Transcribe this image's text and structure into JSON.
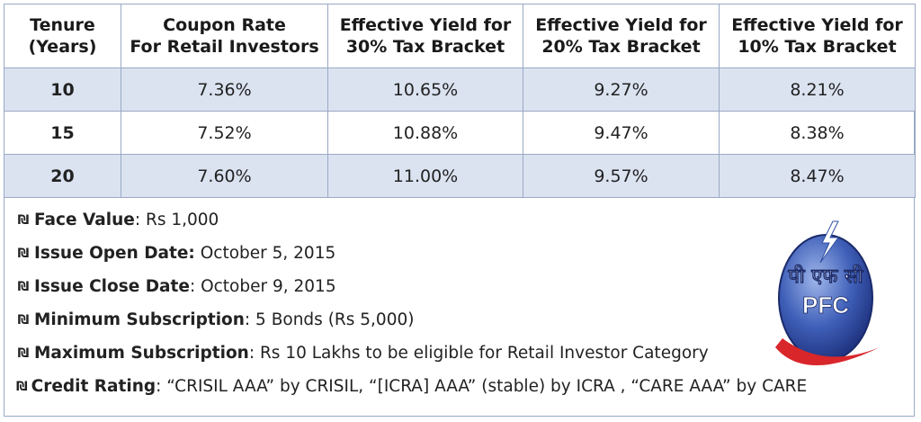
{
  "table": {
    "headers": [
      [
        "Tenure",
        "(Years)"
      ],
      [
        "Coupon Rate",
        "For Retail Investors"
      ],
      [
        "Effective Yield for",
        "30% Tax Bracket"
      ],
      [
        "Effective Yield for",
        "20% Tax Bracket"
      ],
      [
        "Effective Yield for",
        "10% Tax Bracket"
      ]
    ],
    "rows": [
      [
        "10",
        "7.36%",
        "10.65%",
        "9.27%",
        "8.21%"
      ],
      [
        "15",
        "7.52%",
        "10.88%",
        "9.47%",
        "8.38%"
      ],
      [
        "20",
        "7.60%",
        "11.00%",
        "9.57%",
        "8.47%"
      ]
    ]
  },
  "details": [
    {
      "icon": "money-bag-icon",
      "label": "Face Value",
      "sep": ": ",
      "value": "Rs 1,000"
    },
    {
      "icon": "money-bag-icon",
      "label": "Issue Open Date:",
      "sep": " ",
      "value": "October 5, 2015"
    },
    {
      "icon": "money-bag-icon",
      "label": "Issue Close Date",
      "sep": ": ",
      "value": "October 9, 2015"
    },
    {
      "icon": "money-bag-icon",
      "label": "Minimum Subscription",
      "sep": ": ",
      "value": "5 Bonds (Rs 5,000)"
    },
    {
      "icon": "money-bag-icon",
      "label": "Maximum Subscription",
      "sep": ": ",
      "value": "Rs 10 Lakhs to be eligible for Retail Investor Category"
    },
    {
      "icon": "money-bag-icon",
      "label": "Credit Rating",
      "sep": ": ",
      "value": "“CRISIL AAA” by CRISIL, “[ICRA] AAA” (stable) by ICRA , “CARE AAA” by CARE"
    }
  ],
  "logo": {
    "hindi": "पी एफ सी",
    "abbr": "PFC",
    "colors": {
      "globe": "#2f4fa8",
      "globe_light": "#6f8fd8",
      "swoosh": "#d8262b",
      "text": "#ffffff"
    }
  }
}
